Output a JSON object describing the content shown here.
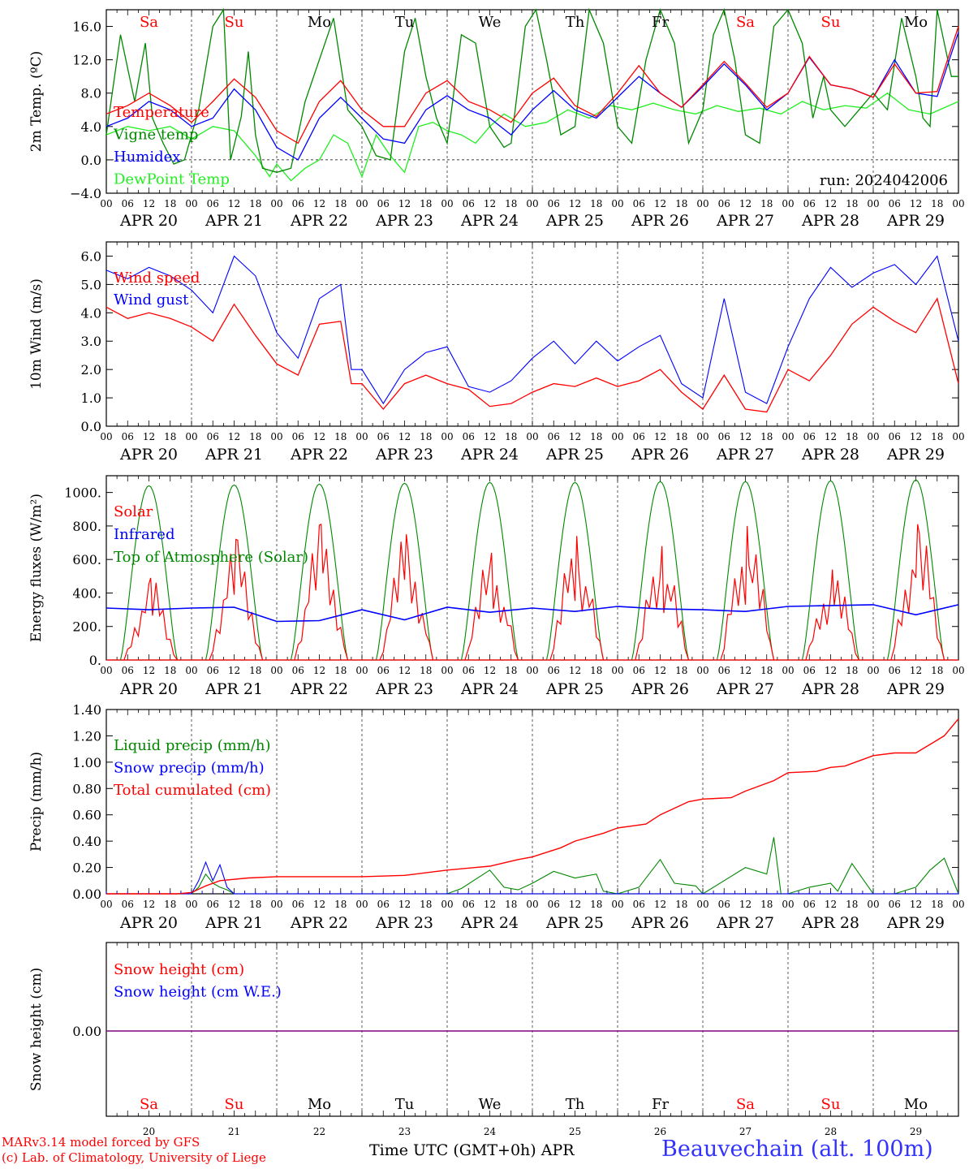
{
  "days": {
    "dates": [
      "20",
      "21",
      "22",
      "23",
      "24",
      "25",
      "26",
      "27",
      "28",
      "29"
    ],
    "labels": [
      "APR 20",
      "APR 21",
      "APR 22",
      "APR 23",
      "APR 24",
      "APR 25",
      "APR 26",
      "APR 27",
      "APR 28",
      "APR 29"
    ],
    "weekdays": [
      "Sa",
      "Su",
      "Mo",
      "Tu",
      "We",
      "Th",
      "Fr",
      "Sa",
      "Su",
      "Mo"
    ],
    "weekend_flags": [
      true,
      true,
      false,
      false,
      false,
      false,
      false,
      true,
      true,
      false
    ],
    "hour_ticks": [
      "00",
      "06",
      "12",
      "18"
    ],
    "end_tick": "00"
  },
  "colors": {
    "red": "#ff0000",
    "green": "#008800",
    "blue": "#0000ff",
    "light_green": "#22ee22",
    "purple": "#800080"
  },
  "footer": {
    "credit_line1": "MARv3.14 model forced by GFS",
    "credit_line2": "(c) Lab. of Climatology, University of Liege",
    "x_axis_title": "Time UTC (GMT+0h) APR",
    "station": "Beauvechain (alt. 100m)"
  },
  "chart_data": [
    {
      "type": "line",
      "ylabel": "2m Temp. (ºC)",
      "ylim": [
        -4,
        18
      ],
      "yticks": [
        "16.0",
        "12.0",
        "8.0",
        "4.0",
        "0.0",
        "−4.0"
      ],
      "run_label": "run: 2024042006",
      "x_unit": "hours since APR 20 00 UTC",
      "series": [
        {
          "name": "Temperature",
          "color": "red",
          "x": [
            0,
            6,
            12,
            18,
            24,
            30,
            36,
            42,
            48,
            54,
            60,
            66,
            72,
            78,
            84,
            90,
            96,
            102,
            108,
            114,
            120,
            126,
            132,
            138,
            144,
            150,
            156,
            162,
            168,
            174,
            180,
            186,
            192,
            198,
            204,
            210,
            216,
            222,
            228,
            234,
            240
          ],
          "values": [
            5.5,
            6.5,
            8,
            6.5,
            4.5,
            7,
            9.7,
            7.5,
            3.5,
            2,
            7,
            9.5,
            6,
            4,
            4,
            8,
            9.5,
            7,
            6,
            4.5,
            8,
            9.8,
            6.5,
            5.2,
            8,
            11.3,
            8,
            6.3,
            9,
            11.8,
            9.2,
            6.3,
            8,
            12.4,
            9,
            8.5,
            7.5,
            11.5,
            8,
            8.2,
            16
          ]
        },
        {
          "name": "Vigne temp",
          "color": "green",
          "x": [
            0,
            4,
            8,
            11,
            13,
            16,
            19,
            22,
            26,
            30,
            33,
            35,
            38,
            40,
            42,
            44,
            48,
            52,
            56,
            60,
            64,
            68,
            72,
            76,
            80,
            84,
            87,
            90,
            93,
            96,
            100,
            104,
            108,
            112,
            114,
            118,
            121,
            124,
            128,
            132,
            136,
            140,
            144,
            148,
            152,
            156,
            160,
            164,
            168,
            171,
            174,
            177,
            180,
            184,
            188,
            192,
            196,
            199,
            202,
            204,
            208,
            212,
            216,
            220,
            224,
            228,
            230,
            232,
            234,
            238,
            240
          ],
          "values": [
            3,
            15,
            7,
            14,
            5,
            2,
            -0.5,
            0,
            6,
            16,
            18,
            0,
            5.2,
            13,
            3,
            -1,
            -1.5,
            -1,
            7,
            12,
            17,
            6,
            4,
            0.5,
            0,
            13,
            17,
            10,
            5,
            2,
            15,
            14,
            4,
            1.5,
            2,
            16,
            18,
            12,
            3,
            4,
            18,
            14,
            4,
            2,
            12,
            18,
            14,
            2,
            6,
            15,
            18,
            12,
            3,
            2,
            16,
            18,
            14,
            5,
            10,
            6,
            4,
            6,
            8,
            6,
            17,
            10,
            5,
            4,
            18,
            10,
            10
          ]
        },
        {
          "name": "Humidex",
          "color": "blue",
          "x": [
            0,
            6,
            12,
            18,
            24,
            30,
            36,
            42,
            48,
            54,
            60,
            66,
            72,
            78,
            84,
            90,
            96,
            102,
            108,
            114,
            120,
            126,
            132,
            138,
            144,
            150,
            156,
            162,
            168,
            174,
            180,
            186,
            192,
            198,
            204,
            210,
            216,
            222,
            228,
            234,
            240
          ],
          "values": [
            4,
            5,
            7,
            6,
            4,
            5,
            8.5,
            6,
            1.5,
            0,
            5,
            7.5,
            5,
            2.5,
            2,
            6,
            7.7,
            6,
            5,
            3,
            6,
            8.3,
            6,
            5,
            7.5,
            10,
            8,
            6.3,
            8.8,
            11.5,
            9,
            6,
            8,
            12.3,
            9,
            8.5,
            7.5,
            12,
            8,
            7.6,
            15.3
          ]
        },
        {
          "name": "DewPoint Temp",
          "color": "light_green",
          "x": [
            0,
            6,
            12,
            18,
            24,
            30,
            36,
            42,
            46,
            48,
            52,
            56,
            60,
            64,
            68,
            72,
            76,
            80,
            84,
            88,
            92,
            96,
            100,
            104,
            108,
            112,
            118,
            124,
            130,
            136,
            142,
            148,
            154,
            160,
            166,
            172,
            178,
            184,
            190,
            196,
            202,
            208,
            214,
            220,
            226,
            232,
            240
          ],
          "values": [
            3,
            4,
            3.5,
            4,
            2.5,
            4,
            3.5,
            0.5,
            -2,
            -0.5,
            -2.5,
            -1,
            0,
            3,
            2,
            -2,
            3,
            0.5,
            -1.5,
            4,
            4.5,
            3.5,
            3,
            2,
            4,
            5.5,
            4,
            4.5,
            6,
            5,
            6.5,
            6,
            6.8,
            6,
            5.5,
            6.5,
            5.8,
            6.2,
            5.5,
            7,
            6,
            6.5,
            6.2,
            8,
            6,
            5.5,
            7
          ]
        }
      ]
    },
    {
      "type": "line",
      "ylabel": "10m Wind (m/s)",
      "ylim": [
        0,
        6.5
      ],
      "yticks": [
        "6.0",
        "5.0",
        "4.0",
        "3.0",
        "2.0",
        "1.0",
        "0.0"
      ],
      "reference_line": 5.0,
      "x_unit": "hours since APR 20 00 UTC",
      "series": [
        {
          "name": "Wind speed",
          "color": "red",
          "x": [
            0,
            6,
            12,
            18,
            24,
            30,
            36,
            42,
            48,
            54,
            60,
            66,
            69,
            72,
            78,
            84,
            90,
            96,
            102,
            108,
            114,
            120,
            126,
            132,
            138,
            144,
            150,
            156,
            162,
            168,
            174,
            180,
            186,
            192,
            198,
            204,
            210,
            216,
            222,
            228,
            234,
            240
          ],
          "values": [
            4.2,
            3.8,
            4,
            3.8,
            3.5,
            3,
            4.3,
            3.2,
            2.2,
            1.8,
            3.6,
            3.7,
            1.5,
            1.5,
            0.6,
            1.5,
            1.8,
            1.5,
            1.3,
            0.7,
            0.8,
            1.2,
            1.5,
            1.4,
            1.7,
            1.4,
            1.6,
            2,
            1.2,
            0.6,
            1.8,
            0.6,
            0.5,
            2,
            1.6,
            2.5,
            3.6,
            4.2,
            3.7,
            3.3,
            4.5,
            1.5
          ]
        },
        {
          "name": "Wind gust",
          "color": "blue",
          "x": [
            0,
            6,
            12,
            18,
            24,
            30,
            36,
            42,
            48,
            54,
            60,
            66,
            69,
            72,
            78,
            84,
            90,
            96,
            102,
            108,
            114,
            120,
            126,
            132,
            138,
            144,
            150,
            156,
            162,
            168,
            174,
            180,
            186,
            192,
            198,
            204,
            210,
            216,
            222,
            228,
            234,
            240
          ],
          "values": [
            5.5,
            5.2,
            5.6,
            5.3,
            4.8,
            4,
            6,
            5.3,
            3.3,
            2.4,
            4.5,
            5,
            2,
            2,
            0.8,
            2,
            2.6,
            2.8,
            1.4,
            1.2,
            1.6,
            2.4,
            3,
            2.2,
            3,
            2.3,
            2.8,
            3.2,
            1.5,
            1,
            4.5,
            1.2,
            0.8,
            2.8,
            4.5,
            5.6,
            4.9,
            5.4,
            5.7,
            5,
            6,
            3
          ]
        }
      ]
    },
    {
      "type": "line",
      "ylabel": "Energy fluxes (W/m²)",
      "ylim": [
        0,
        1100
      ],
      "yticks": [
        "1000.",
        "800.",
        "600.",
        "400.",
        "200.",
        "0."
      ],
      "x_unit": "hours since APR 20 00 UTC",
      "series": [
        {
          "name": "Solar",
          "color": "red",
          "peaks": [
            490,
            720,
            810,
            750,
            640,
            740,
            680,
            800,
            540,
            810
          ]
        },
        {
          "name": "Infrared",
          "color": "blue",
          "x": [
            0,
            12,
            24,
            36,
            48,
            60,
            72,
            84,
            96,
            108,
            120,
            132,
            144,
            156,
            168,
            180,
            192,
            204,
            216,
            228,
            240
          ],
          "values": [
            310,
            300,
            310,
            315,
            230,
            235,
            300,
            240,
            315,
            285,
            310,
            290,
            320,
            305,
            300,
            290,
            320,
            325,
            330,
            270,
            330
          ]
        },
        {
          "name": "Top of Atmosphere (Solar)",
          "color": "green",
          "peaks": [
            1040,
            1045,
            1050,
            1055,
            1060,
            1060,
            1065,
            1065,
            1070,
            1075
          ]
        }
      ]
    },
    {
      "type": "line",
      "ylabel": "Precip (mm/h)",
      "ylim": [
        0,
        1.4
      ],
      "yticks": [
        "1.40",
        "1.20",
        "1.00",
        "0.80",
        "0.60",
        "0.40",
        "0.20",
        "0.00"
      ],
      "x_unit": "hours since APR 20 00 UTC",
      "series": [
        {
          "name": "Liquid precip (mm/h)",
          "color": "green",
          "x": [
            0,
            24,
            26,
            28,
            30,
            32,
            34,
            36,
            40,
            48,
            96,
            100,
            108,
            112,
            116,
            120,
            126,
            132,
            138,
            140,
            144,
            150,
            156,
            160,
            166,
            168,
            174,
            180,
            186,
            188,
            190,
            192,
            198,
            204,
            206,
            210,
            216,
            222,
            228,
            232,
            236,
            240
          ],
          "values": [
            0,
            0,
            0.05,
            0.15,
            0.08,
            0.05,
            0.03,
            0,
            0,
            0,
            0,
            0.04,
            0.18,
            0.05,
            0.03,
            0.08,
            0.17,
            0.12,
            0.15,
            0.02,
            0,
            0.05,
            0.26,
            0.08,
            0.06,
            0,
            0.1,
            0.2,
            0.15,
            0.43,
            0,
            0,
            0.05,
            0.08,
            0.02,
            0.23,
            0,
            0,
            0.05,
            0.18,
            0.27,
            0
          ]
        },
        {
          "name": "Snow precip (mm/h)",
          "color": "blue",
          "x": [
            0,
            24,
            26,
            28,
            30,
            32,
            34,
            36,
            40,
            240
          ],
          "values": [
            0,
            0,
            0.1,
            0.24,
            0.1,
            0.22,
            0.05,
            0,
            0,
            0
          ]
        },
        {
          "name": "Total cumulated (cm)",
          "color": "red",
          "x": [
            0,
            20,
            24,
            28,
            32,
            40,
            48,
            60,
            72,
            84,
            90,
            96,
            104,
            108,
            116,
            120,
            128,
            132,
            140,
            144,
            152,
            156,
            164,
            168,
            176,
            180,
            188,
            192,
            200,
            204,
            208,
            216,
            222,
            228,
            236,
            240
          ],
          "values": [
            0,
            0,
            0.01,
            0.06,
            0.1,
            0.12,
            0.13,
            0.13,
            0.13,
            0.14,
            0.16,
            0.18,
            0.2,
            0.21,
            0.26,
            0.28,
            0.35,
            0.4,
            0.46,
            0.5,
            0.53,
            0.6,
            0.7,
            0.72,
            0.73,
            0.78,
            0.86,
            0.92,
            0.93,
            0.96,
            0.97,
            1.05,
            1.07,
            1.07,
            1.2,
            1.33
          ]
        }
      ]
    },
    {
      "type": "line",
      "ylabel": "Snow height (cm)",
      "yticks": [
        "0.00"
      ],
      "x_unit": "hours since APR 20 00 UTC",
      "series": [
        {
          "name": "Snow height (cm)",
          "color": "red",
          "x": [
            0,
            240
          ],
          "values": [
            0,
            0
          ]
        },
        {
          "name": "Snow height (cm W.E.)",
          "color": "blue",
          "x": [
            0,
            240
          ],
          "values": [
            0,
            0
          ]
        }
      ]
    }
  ]
}
